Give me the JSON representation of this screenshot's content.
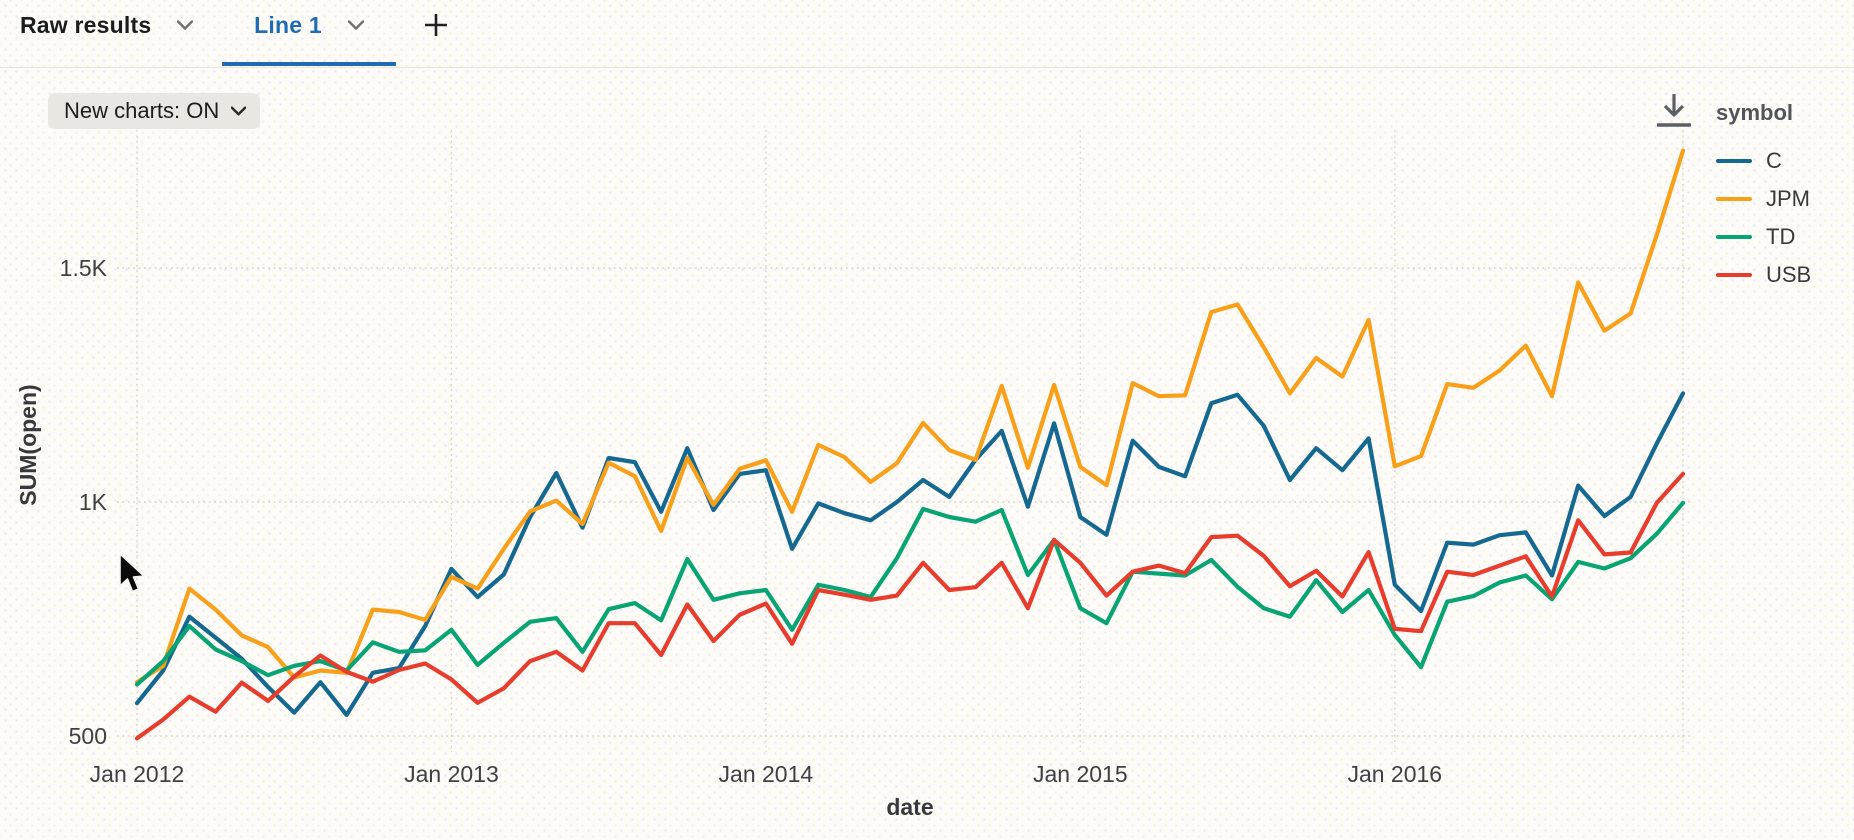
{
  "tab_bar": {
    "tabs": [
      {
        "label": "Raw results",
        "active": false
      },
      {
        "label": "Line 1",
        "active": true
      }
    ],
    "add_tab_icon": "plus-icon",
    "active_accent_color": "#1f6cb5"
  },
  "toolbar": {
    "new_charts_label": "New charts: ON",
    "download_icon": "download-icon"
  },
  "chart_data": {
    "type": "line",
    "title": "",
    "xlabel": "date",
    "ylabel": "SUM(open)",
    "legend_title": "symbol",
    "legend_position": "top-right",
    "grid": "dotted",
    "ylim": [
      450,
      1800
    ],
    "x_frequency": "monthly",
    "x": [
      "2012-01",
      "2012-02",
      "2012-03",
      "2012-04",
      "2012-05",
      "2012-06",
      "2012-07",
      "2012-08",
      "2012-09",
      "2012-10",
      "2012-11",
      "2012-12",
      "2013-01",
      "2013-02",
      "2013-03",
      "2013-04",
      "2013-05",
      "2013-06",
      "2013-07",
      "2013-08",
      "2013-09",
      "2013-10",
      "2013-11",
      "2013-12",
      "2014-01",
      "2014-02",
      "2014-03",
      "2014-04",
      "2014-05",
      "2014-06",
      "2014-07",
      "2014-08",
      "2014-09",
      "2014-10",
      "2014-11",
      "2014-12",
      "2015-01",
      "2015-02",
      "2015-03",
      "2015-04",
      "2015-05",
      "2015-06",
      "2015-07",
      "2015-08",
      "2015-09",
      "2015-10",
      "2015-11",
      "2015-12",
      "2016-01",
      "2016-02",
      "2016-03",
      "2016-04",
      "2016-05",
      "2016-06",
      "2016-07",
      "2016-08",
      "2016-09",
      "2016-10",
      "2016-11",
      "2016-12"
    ],
    "x_ticks": [
      {
        "index": 0,
        "label": "Jan 2012"
      },
      {
        "index": 12,
        "label": "Jan 2013"
      },
      {
        "index": 24,
        "label": "Jan 2014"
      },
      {
        "index": 36,
        "label": "Jan 2015"
      },
      {
        "index": 48,
        "label": "Jan 2016"
      }
    ],
    "y_ticks": [
      {
        "value": 500,
        "label": "500"
      },
      {
        "value": 1000,
        "label": "1K"
      },
      {
        "value": 1500,
        "label": "1.5K"
      }
    ],
    "series": [
      {
        "name": "C",
        "color": "#15688f",
        "values": [
          570,
          640,
          755,
          710,
          665,
          605,
          550,
          615,
          545,
          635,
          645,
          735,
          857,
          797,
          845,
          968,
          1062,
          945,
          1094,
          1085,
          979,
          1115,
          983,
          1060,
          1068,
          900,
          997,
          976,
          961,
          1000,
          1047,
          1011,
          1090,
          1152,
          990,
          1168,
          968,
          930,
          1131,
          1075,
          1055,
          1211,
          1229,
          1163,
          1047,
          1115,
          1068,
          1136,
          823,
          767,
          913,
          909,
          929,
          935,
          843,
          1035,
          970,
          1011,
          1125,
          1232
        ]
      },
      {
        "name": "JPM",
        "color": "#f9a01b",
        "values": [
          615,
          650,
          815,
          770,
          715,
          690,
          625,
          640,
          635,
          770,
          765,
          748,
          840,
          815,
          900,
          980,
          1003,
          953,
          1084,
          1055,
          938,
          1094,
          994,
          1071,
          1089,
          979,
          1122,
          1096,
          1043,
          1083,
          1169,
          1111,
          1090,
          1248,
          1073,
          1250,
          1075,
          1036,
          1254,
          1226,
          1228,
          1406,
          1422,
          1331,
          1232,
          1308,
          1268,
          1389,
          1076,
          1098,
          1252,
          1244,
          1281,
          1334,
          1226,
          1469,
          1366,
          1403,
          1571,
          1751
        ]
      },
      {
        "name": "TD",
        "color": "#09a473",
        "values": [
          610,
          660,
          735,
          685,
          660,
          630,
          650,
          660,
          640,
          700,
          680,
          683,
          727,
          652,
          699,
          744,
          752,
          680,
          771,
          784,
          747,
          878,
          791,
          805,
          812,
          727,
          823,
          812,
          797,
          880,
          985,
          968,
          958,
          983,
          844,
          919,
          773,
          741,
          851,
          847,
          843,
          876,
          819,
          773,
          755,
          833,
          765,
          812,
          716,
          647,
          787,
          799,
          828,
          843,
          792,
          872,
          858,
          880,
          932,
          998
        ]
      },
      {
        "name": "USB",
        "color": "#e83c2d",
        "values": [
          495,
          535,
          584,
          552,
          614,
          575,
          627,
          672,
          637,
          616,
          641,
          655,
          621,
          571,
          602,
          660,
          680,
          640,
          741,
          741,
          673,
          781,
          703,
          759,
          783,
          697,
          812,
          802,
          791,
          800,
          870,
          812,
          818,
          870,
          773,
          919,
          870,
          800,
          851,
          864,
          848,
          925,
          928,
          885,
          820,
          853,
          798,
          893,
          729,
          724,
          851,
          844,
          864,
          884,
          798,
          961,
          888,
          892,
          998,
          1060
        ]
      }
    ]
  }
}
